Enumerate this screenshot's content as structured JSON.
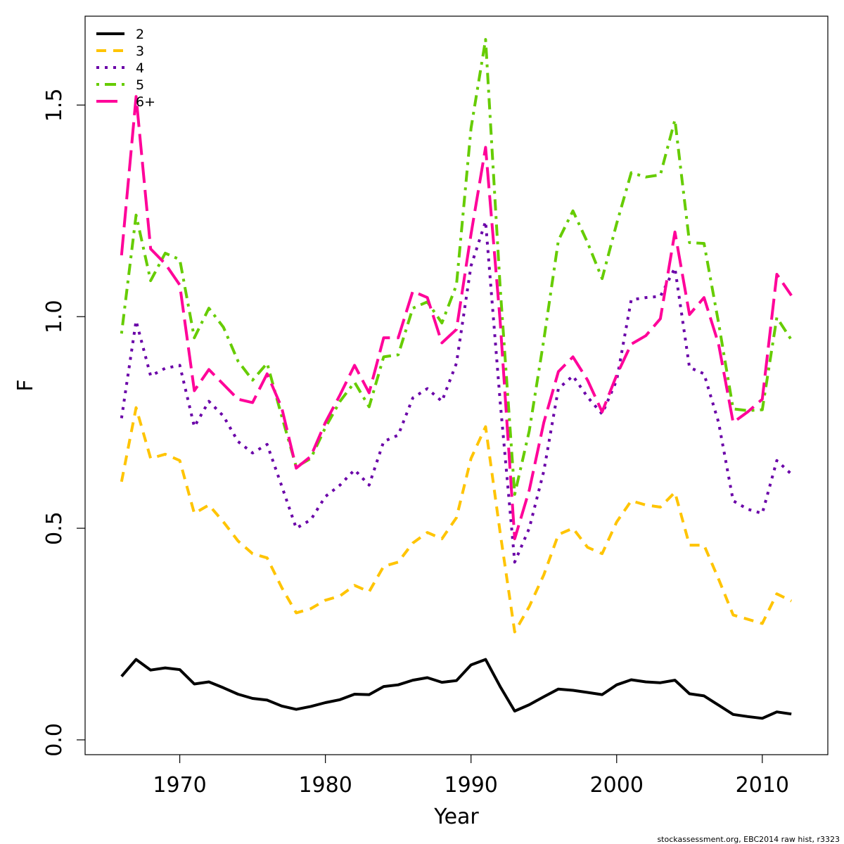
{
  "chart_data": {
    "type": "line",
    "xlabel": "Year",
    "ylabel": "F",
    "xlim": [
      1963.5,
      2014.5
    ],
    "ylim": [
      -0.035,
      1.71
    ],
    "xticks": [
      1970,
      1980,
      1990,
      2000,
      2010
    ],
    "yticks": [
      0.0,
      0.5,
      1.0,
      1.5
    ],
    "ytick_labels": [
      "0.0",
      "0.5",
      "1.0",
      "1.5"
    ],
    "grid": false,
    "legend_position": "top-left",
    "x": [
      1966,
      1967,
      1968,
      1969,
      1970,
      1971,
      1972,
      1973,
      1974,
      1975,
      1976,
      1977,
      1978,
      1979,
      1980,
      1981,
      1982,
      1983,
      1984,
      1985,
      1986,
      1987,
      1988,
      1989,
      1990,
      1991,
      1992,
      1993,
      1994,
      1995,
      1996,
      1997,
      1998,
      1999,
      2000,
      2001,
      2002,
      2003,
      2004,
      2005,
      2006,
      2007,
      2008,
      2009,
      2010,
      2011,
      2012
    ],
    "series": [
      {
        "name": "2",
        "color": "#000000",
        "dash": "solid",
        "values": [
          0.15,
          0.19,
          0.165,
          0.17,
          0.166,
          0.132,
          0.137,
          0.123,
          0.108,
          0.098,
          0.094,
          0.08,
          0.072,
          0.079,
          0.088,
          0.095,
          0.108,
          0.107,
          0.126,
          0.13,
          0.141,
          0.147,
          0.136,
          0.14,
          0.177,
          0.19,
          0.126,
          0.068,
          0.083,
          0.102,
          0.12,
          0.117,
          0.112,
          0.107,
          0.13,
          0.142,
          0.137,
          0.135,
          0.141,
          0.109,
          0.104,
          0.082,
          0.06,
          0.055,
          0.051,
          0.066,
          0.061
        ]
      },
      {
        "name": "3",
        "color": "#FFC400",
        "dash": "dashed",
        "values": [
          0.61,
          0.785,
          0.665,
          0.675,
          0.66,
          0.535,
          0.555,
          0.515,
          0.47,
          0.44,
          0.43,
          0.36,
          0.3,
          0.31,
          0.33,
          0.34,
          0.365,
          0.35,
          0.41,
          0.42,
          0.465,
          0.49,
          0.475,
          0.525,
          0.665,
          0.74,
          0.49,
          0.255,
          0.315,
          0.39,
          0.485,
          0.5,
          0.455,
          0.44,
          0.515,
          0.565,
          0.555,
          0.55,
          0.585,
          0.46,
          0.46,
          0.38,
          0.295,
          0.285,
          0.275,
          0.345,
          0.328
        ]
      },
      {
        "name": "4",
        "color": "#6A00A8",
        "dash": "dotted",
        "values": [
          0.76,
          0.99,
          0.86,
          0.878,
          0.885,
          0.74,
          0.8,
          0.765,
          0.705,
          0.678,
          0.698,
          0.6,
          0.5,
          0.52,
          0.575,
          0.602,
          0.638,
          0.602,
          0.705,
          0.72,
          0.808,
          0.83,
          0.8,
          0.89,
          1.12,
          1.225,
          0.8,
          0.42,
          0.5,
          0.635,
          0.83,
          0.86,
          0.81,
          0.77,
          0.85,
          1.04,
          1.045,
          1.048,
          1.115,
          0.88,
          0.865,
          0.75,
          0.565,
          0.545,
          0.535,
          0.66,
          0.628
        ]
      },
      {
        "name": "5",
        "color": "#66CC00",
        "dash": "dashdot",
        "values": [
          0.96,
          1.24,
          1.085,
          1.15,
          1.135,
          0.95,
          1.02,
          0.975,
          0.895,
          0.85,
          0.89,
          0.765,
          0.645,
          0.665,
          0.738,
          0.8,
          0.845,
          0.787,
          0.905,
          0.91,
          1.02,
          1.035,
          0.985,
          1.075,
          1.445,
          1.655,
          1.07,
          0.58,
          0.73,
          0.945,
          1.18,
          1.25,
          1.175,
          1.09,
          1.22,
          1.34,
          1.33,
          1.335,
          1.465,
          1.175,
          1.173,
          0.985,
          0.782,
          0.778,
          0.78,
          0.998,
          0.945
        ]
      },
      {
        "name": "6+",
        "color": "#FF0099",
        "dash": "longdash",
        "values": [
          1.145,
          1.52,
          1.16,
          1.125,
          1.075,
          0.825,
          0.875,
          0.84,
          0.805,
          0.797,
          0.865,
          0.785,
          0.642,
          0.67,
          0.75,
          0.815,
          0.885,
          0.82,
          0.95,
          0.95,
          1.06,
          1.045,
          0.938,
          0.97,
          1.195,
          1.4,
          0.99,
          0.475,
          0.59,
          0.75,
          0.87,
          0.905,
          0.85,
          0.775,
          0.862,
          0.935,
          0.955,
          0.995,
          1.2,
          1.005,
          1.045,
          0.935,
          0.75,
          0.775,
          0.805,
          1.1,
          1.05
        ]
      }
    ],
    "footer": "stockassessment.org, EBC2014  raw  hist, r3323"
  }
}
